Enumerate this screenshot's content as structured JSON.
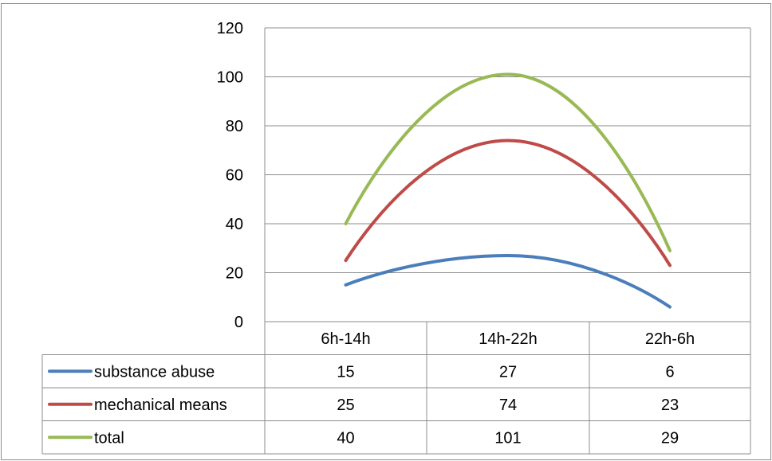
{
  "chart_data": {
    "type": "line",
    "categories": [
      "6h-14h",
      "14h-22h",
      "22h-6h"
    ],
    "series": [
      {
        "name": "substance abuse",
        "values": [
          15,
          27,
          6
        ],
        "color": "#4a7ebb"
      },
      {
        "name": "mechanical means",
        "values": [
          25,
          74,
          23
        ],
        "color": "#be4b48"
      },
      {
        "name": "total",
        "values": [
          40,
          101,
          29
        ],
        "color": "#98b954"
      }
    ],
    "yticks": [
      0,
      20,
      40,
      60,
      80,
      100,
      120
    ],
    "ylim": [
      0,
      120
    ],
    "smooth": true,
    "grid": true,
    "legend": "data-table"
  }
}
